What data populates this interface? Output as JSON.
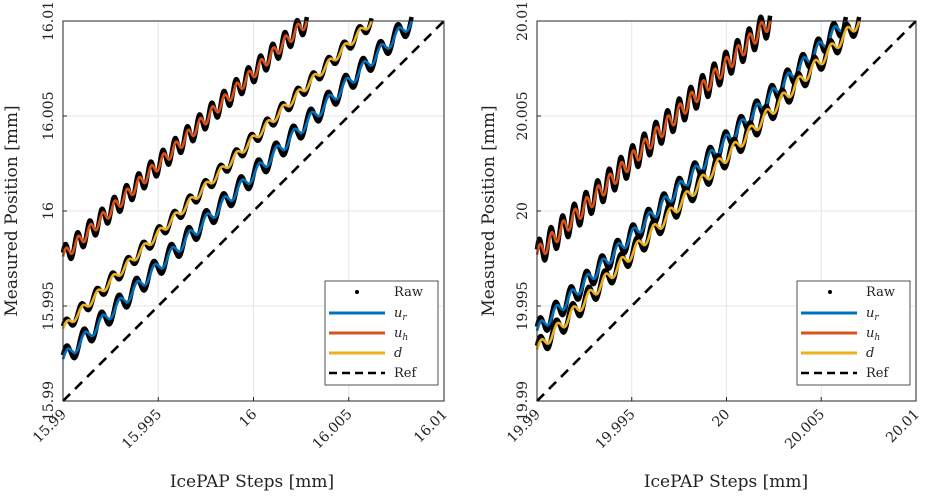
{
  "chart_data": [
    {
      "type": "line",
      "xlabel": "IcePAP Steps [mm]",
      "ylabel": "Measured Position [mm]",
      "xlim": [
        15.99,
        16.01
      ],
      "ylim": [
        15.99,
        16.01
      ],
      "xticks": [
        "15.99",
        "15.995",
        "16",
        "16.005",
        "16.01"
      ],
      "yticks": [
        "15.99",
        "15.995",
        "16",
        "16.005",
        "16.01"
      ],
      "grid": true,
      "legend_position": "bottom-right",
      "series": [
        {
          "name": "Raw",
          "style": "dots",
          "color": "#000000",
          "offset": null
        },
        {
          "name": "u_r",
          "style": "line",
          "color": "#0072BD",
          "x": [
            15.99,
            16.0083
          ],
          "y": [
            15.9922,
            16.01
          ],
          "ripple_amplitude": 0.0003
        },
        {
          "name": "u_h",
          "style": "line",
          "color": "#D95319",
          "x": [
            15.99,
            16.0028
          ],
          "y": [
            15.9976,
            16.01
          ],
          "ripple_amplitude": 0.0003
        },
        {
          "name": "d",
          "style": "line",
          "color": "#EDB120",
          "x": [
            15.99,
            16.0062
          ],
          "y": [
            15.9938,
            16.01
          ],
          "ripple_amplitude": 0.0002
        },
        {
          "name": "Ref",
          "style": "dashed",
          "color": "#000000",
          "x": [
            15.99,
            16.01
          ],
          "y": [
            15.99,
            16.01
          ]
        }
      ]
    },
    {
      "type": "line",
      "xlabel": "IcePAP Steps [mm]",
      "ylabel": "Measured Position [mm]",
      "xlim": [
        19.99,
        20.01
      ],
      "ylim": [
        19.99,
        20.01
      ],
      "xticks": [
        "19.99",
        "19.995",
        "20",
        "20.005",
        "20.01"
      ],
      "yticks": [
        "19.99",
        "19.995",
        "20",
        "20.005",
        "20.01"
      ],
      "grid": true,
      "legend_position": "bottom-right",
      "series": [
        {
          "name": "Raw",
          "style": "dots",
          "color": "#000000"
        },
        {
          "name": "u_r",
          "style": "line",
          "color": "#0072BD",
          "x": [
            19.99,
            20.0063
          ],
          "y": [
            19.9937,
            20.01
          ],
          "ripple_amplitude": 0.0003
        },
        {
          "name": "u_h",
          "style": "line",
          "color": "#D95319",
          "x": [
            19.99,
            20.0023
          ],
          "y": [
            19.9977,
            20.01
          ],
          "ripple_amplitude": 0.0004
        },
        {
          "name": "d",
          "style": "line",
          "color": "#EDB120",
          "x": [
            19.99,
            20.007
          ],
          "y": [
            19.9927,
            20.01
          ],
          "ripple_amplitude": 0.0003
        },
        {
          "name": "Ref",
          "style": "dashed",
          "color": "#000000",
          "x": [
            19.99,
            20.01
          ],
          "y": [
            19.99,
            20.01
          ]
        }
      ]
    }
  ],
  "legend": {
    "raw": "Raw",
    "ur_base": "u",
    "ur_sub": "r",
    "uh_base": "u",
    "uh_sub": "h",
    "d": "d",
    "ref": "Ref"
  }
}
